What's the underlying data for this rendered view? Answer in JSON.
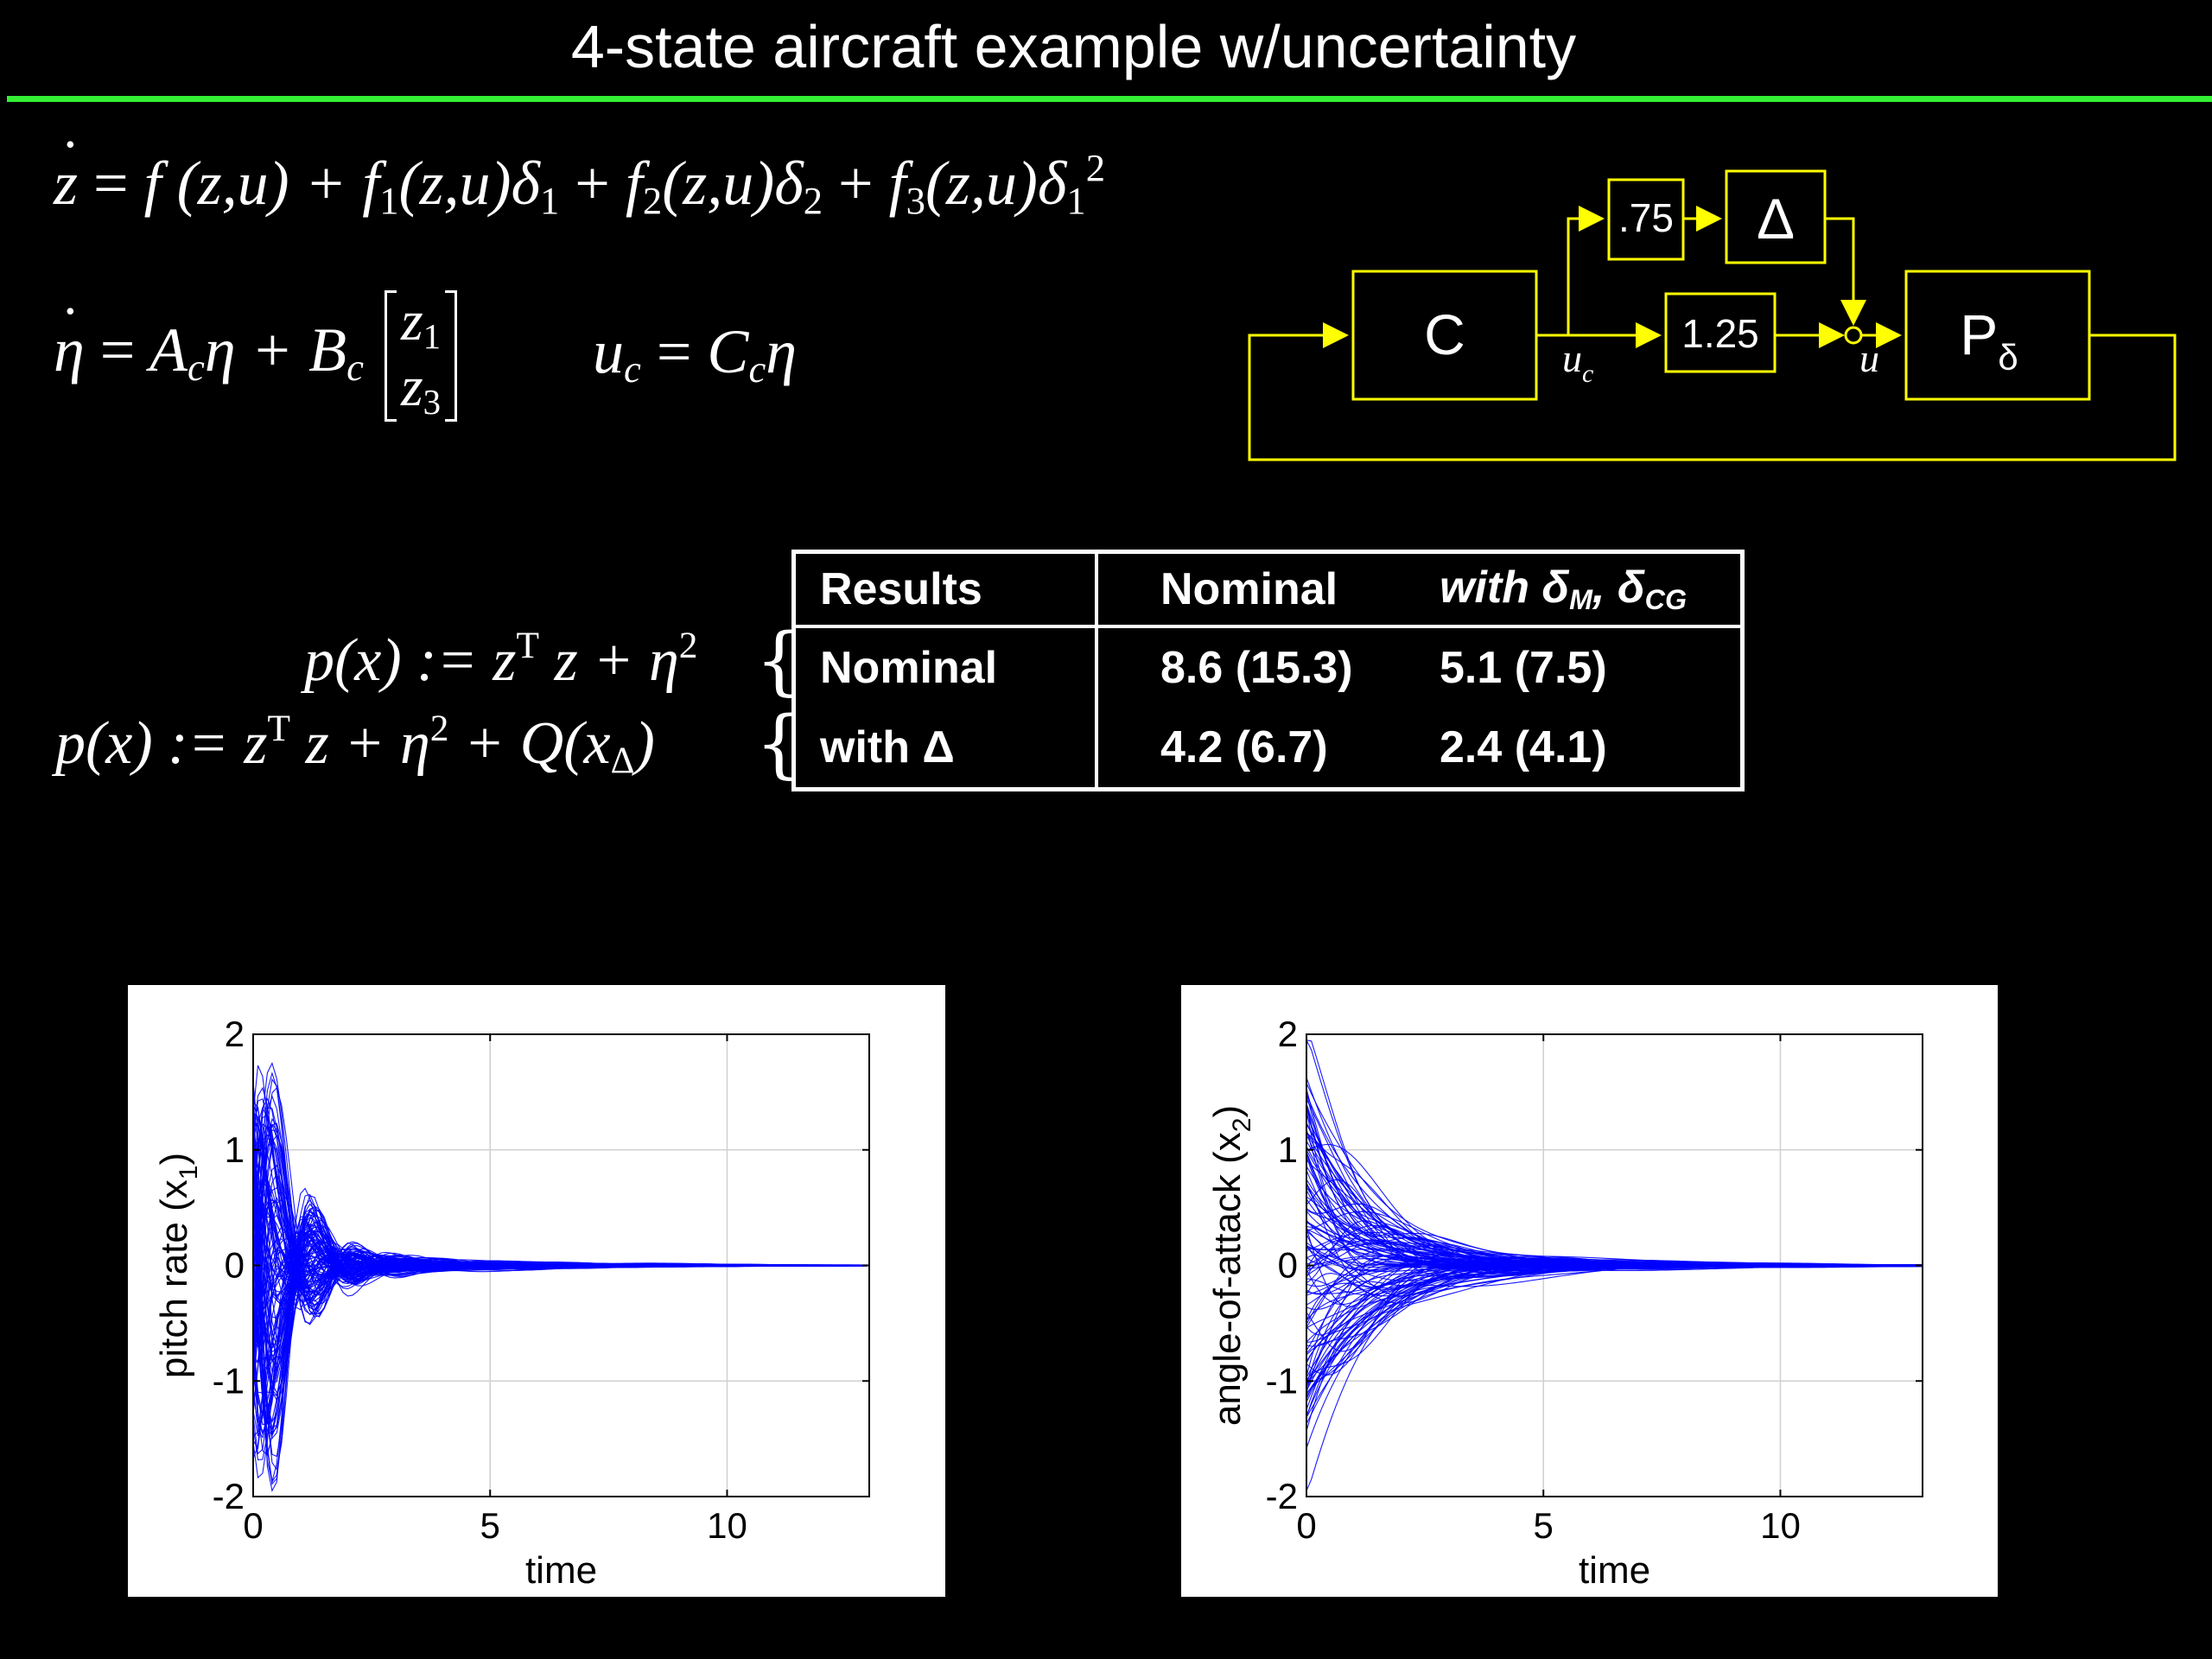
{
  "slide": {
    "title": "4-state aircraft example w/uncertainty"
  },
  "equations": {
    "dynamics": {
      "lhs": "z",
      "eq": "=",
      "t1": "f (z,u) +",
      "t2": "f",
      "t2sub": "1",
      "t2b": "(z,u)δ",
      "t2bsub": "1",
      "t3": "+",
      "t3f": "f",
      "t3sub": "2",
      "t3b": "(z,u)δ",
      "t3bsub": "2",
      "t4": "+",
      "t4f": "f",
      "t4sub": "3",
      "t4b": "(z,u)δ",
      "t4bsub": "1",
      "t4bsup": "2"
    },
    "controller": {
      "lhs": "η",
      "eq": "=",
      "a": "A",
      "asub": "c",
      "amid": "η +",
      "b": "B",
      "bsub": "c",
      "m1": "z",
      "m1sub": "1",
      "m2": "z",
      "m2sub": "3"
    },
    "output": {
      "u": "u",
      "usub": "c",
      "eq": "=",
      "c": "C",
      "csub": "c",
      "eta": "η"
    },
    "p_nominal": {
      "lhs": "p(x) := z",
      "sup": "T",
      "rest": "z + η",
      "sup2": "2"
    },
    "p_delta": {
      "lhs": "p(x) := z",
      "sup": "T",
      "rest": "z + η",
      "sup2": "2",
      "q": "+ Q(x",
      "qsub": "Δ",
      "close": ")"
    }
  },
  "diagram": {
    "controller": "C",
    "plant": "P",
    "plant_sub": "δ",
    "gain_top": ".75",
    "gain_mid": "1.25",
    "uncertainty": "Δ",
    "signal_uc": "u",
    "signal_uc_sub": "c",
    "signal_u": "u",
    "color": "#ffff00"
  },
  "results_table": {
    "headers": [
      "Results",
      "Nominal",
      "with δ"
    ],
    "header_sub": {
      "m": "M",
      "sep": ", δ",
      "cg": "CG"
    },
    "rows": [
      [
        "Nominal",
        "8.6 (15.3)",
        "5.1 (7.5)"
      ],
      [
        "with Δ",
        "4.2 (6.7)",
        "2.4 (4.1)"
      ]
    ]
  },
  "chart_data": [
    {
      "type": "line",
      "ylabel": "pitch rate (x",
      "ylabel_sub": "1",
      "ylabel_close": ")",
      "xlabel": "time",
      "xlim": [
        0,
        13
      ],
      "ylim": [
        -2,
        2
      ],
      "xticks": [
        "0",
        "5",
        "10"
      ],
      "yticks": [
        "2",
        "1",
        "0",
        "-1",
        "-2"
      ],
      "grid": true,
      "line_color": "#0000ff",
      "series_profile": {
        "count": 120,
        "initial_range": [
          -1.5,
          1.5
        ],
        "peak_range": [
          -1.55,
          1.45
        ],
        "peak_time": 0.45,
        "settle_time": 12
      }
    },
    {
      "type": "line",
      "ylabel": "angle-of-attack (x",
      "ylabel_sub": "2",
      "ylabel_close": ")",
      "xlabel": "time",
      "xlim": [
        0,
        13
      ],
      "ylim": [
        -2,
        2
      ],
      "xticks": [
        "0",
        "5",
        "10"
      ],
      "yticks": [
        "2",
        "1",
        "0",
        "-1",
        "-2"
      ],
      "grid": true,
      "line_color": "#0000ff",
      "series_profile": {
        "count": 120,
        "initial_range": [
          -1.45,
          1.55
        ],
        "peak_range": [
          -1.0,
          0.9
        ],
        "peak_time": 1.0,
        "settle_time": 12.5
      }
    }
  ]
}
